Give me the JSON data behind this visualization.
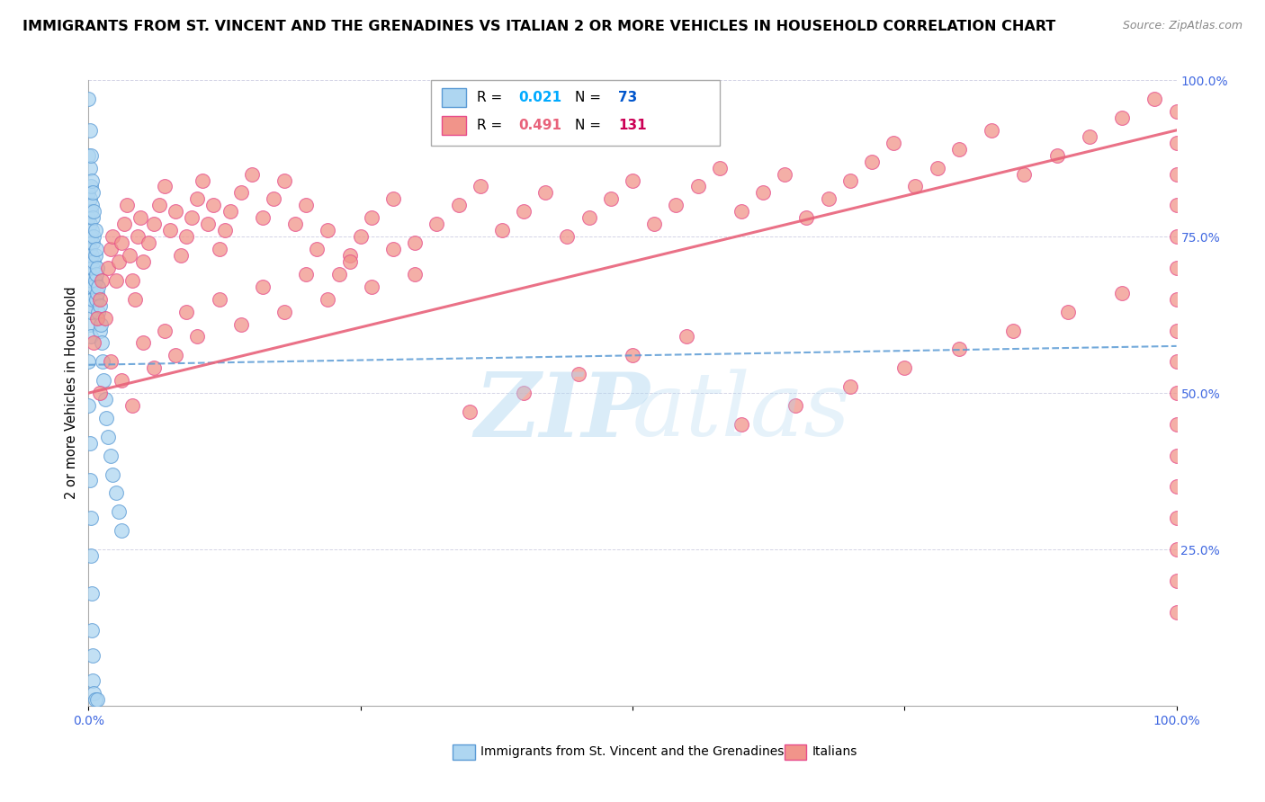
{
  "title": "IMMIGRANTS FROM ST. VINCENT AND THE GRENADINES VS ITALIAN 2 OR MORE VEHICLES IN HOUSEHOLD CORRELATION CHART",
  "source": "Source: ZipAtlas.com",
  "ylabel": "2 or more Vehicles in Household",
  "blue_R": 0.021,
  "blue_N": 73,
  "pink_R": 0.491,
  "pink_N": 131,
  "blue_fill": "#AED6F1",
  "blue_edge": "#5B9BD5",
  "pink_fill": "#F1948A",
  "pink_edge": "#E74C8B",
  "trend_blue_color": "#5B9BD5",
  "trend_pink_color": "#E8627A",
  "blue_x": [
    0.0,
    0.0,
    0.0,
    0.0,
    0.0,
    0.001,
    0.001,
    0.001,
    0.001,
    0.001,
    0.001,
    0.001,
    0.001,
    0.002,
    0.002,
    0.002,
    0.002,
    0.002,
    0.002,
    0.002,
    0.002,
    0.003,
    0.003,
    0.003,
    0.003,
    0.003,
    0.003,
    0.004,
    0.004,
    0.004,
    0.004,
    0.004,
    0.005,
    0.005,
    0.005,
    0.005,
    0.006,
    0.006,
    0.006,
    0.007,
    0.007,
    0.007,
    0.008,
    0.008,
    0.009,
    0.009,
    0.01,
    0.01,
    0.011,
    0.012,
    0.013,
    0.014,
    0.015,
    0.016,
    0.018,
    0.02,
    0.022,
    0.025,
    0.028,
    0.03,
    0.0,
    0.0,
    0.001,
    0.001,
    0.002,
    0.002,
    0.003,
    0.003,
    0.004,
    0.004,
    0.005,
    0.006,
    0.008
  ],
  "blue_y": [
    0.97,
    0.88,
    0.82,
    0.78,
    0.74,
    0.92,
    0.86,
    0.81,
    0.77,
    0.73,
    0.69,
    0.65,
    0.61,
    0.88,
    0.83,
    0.79,
    0.75,
    0.71,
    0.67,
    0.63,
    0.59,
    0.84,
    0.8,
    0.76,
    0.72,
    0.68,
    0.64,
    0.82,
    0.78,
    0.74,
    0.7,
    0.65,
    0.79,
    0.75,
    0.71,
    0.67,
    0.76,
    0.72,
    0.68,
    0.73,
    0.69,
    0.65,
    0.7,
    0.66,
    0.67,
    0.63,
    0.64,
    0.6,
    0.61,
    0.58,
    0.55,
    0.52,
    0.49,
    0.46,
    0.43,
    0.4,
    0.37,
    0.34,
    0.31,
    0.28,
    0.55,
    0.48,
    0.42,
    0.36,
    0.3,
    0.24,
    0.18,
    0.12,
    0.08,
    0.04,
    0.02,
    0.01,
    0.01
  ],
  "pink_x": [
    0.005,
    0.008,
    0.01,
    0.012,
    0.015,
    0.018,
    0.02,
    0.022,
    0.025,
    0.028,
    0.03,
    0.033,
    0.035,
    0.038,
    0.04,
    0.043,
    0.045,
    0.048,
    0.05,
    0.055,
    0.06,
    0.065,
    0.07,
    0.075,
    0.08,
    0.085,
    0.09,
    0.095,
    0.1,
    0.105,
    0.11,
    0.115,
    0.12,
    0.125,
    0.13,
    0.14,
    0.15,
    0.16,
    0.17,
    0.18,
    0.19,
    0.2,
    0.21,
    0.22,
    0.23,
    0.24,
    0.25,
    0.26,
    0.28,
    0.3,
    0.32,
    0.34,
    0.36,
    0.38,
    0.4,
    0.42,
    0.44,
    0.46,
    0.48,
    0.5,
    0.52,
    0.54,
    0.56,
    0.58,
    0.6,
    0.62,
    0.64,
    0.66,
    0.68,
    0.7,
    0.72,
    0.74,
    0.76,
    0.78,
    0.8,
    0.83,
    0.86,
    0.89,
    0.92,
    0.95,
    0.01,
    0.02,
    0.03,
    0.04,
    0.05,
    0.06,
    0.07,
    0.08,
    0.09,
    0.1,
    0.12,
    0.14,
    0.16,
    0.18,
    0.2,
    0.22,
    0.24,
    0.26,
    0.28,
    0.3,
    0.35,
    0.4,
    0.45,
    0.5,
    0.55,
    0.6,
    0.65,
    0.7,
    0.75,
    0.8,
    0.85,
    0.9,
    0.95,
    1.0,
    1.0,
    1.0,
    1.0,
    1.0,
    1.0,
    1.0,
    1.0,
    1.0,
    1.0,
    1.0,
    1.0,
    1.0,
    1.0,
    1.0,
    1.0,
    1.0,
    0.98
  ],
  "pink_y": [
    0.58,
    0.62,
    0.65,
    0.68,
    0.62,
    0.7,
    0.73,
    0.75,
    0.68,
    0.71,
    0.74,
    0.77,
    0.8,
    0.72,
    0.68,
    0.65,
    0.75,
    0.78,
    0.71,
    0.74,
    0.77,
    0.8,
    0.83,
    0.76,
    0.79,
    0.72,
    0.75,
    0.78,
    0.81,
    0.84,
    0.77,
    0.8,
    0.73,
    0.76,
    0.79,
    0.82,
    0.85,
    0.78,
    0.81,
    0.84,
    0.77,
    0.8,
    0.73,
    0.76,
    0.69,
    0.72,
    0.75,
    0.78,
    0.81,
    0.74,
    0.77,
    0.8,
    0.83,
    0.76,
    0.79,
    0.82,
    0.75,
    0.78,
    0.81,
    0.84,
    0.77,
    0.8,
    0.83,
    0.86,
    0.79,
    0.82,
    0.85,
    0.78,
    0.81,
    0.84,
    0.87,
    0.9,
    0.83,
    0.86,
    0.89,
    0.92,
    0.85,
    0.88,
    0.91,
    0.94,
    0.5,
    0.55,
    0.52,
    0.48,
    0.58,
    0.54,
    0.6,
    0.56,
    0.63,
    0.59,
    0.65,
    0.61,
    0.67,
    0.63,
    0.69,
    0.65,
    0.71,
    0.67,
    0.73,
    0.69,
    0.47,
    0.5,
    0.53,
    0.56,
    0.59,
    0.45,
    0.48,
    0.51,
    0.54,
    0.57,
    0.6,
    0.63,
    0.66,
    0.95,
    0.9,
    0.85,
    0.8,
    0.75,
    0.7,
    0.65,
    0.6,
    0.55,
    0.5,
    0.45,
    0.4,
    0.35,
    0.3,
    0.25,
    0.2,
    0.15,
    0.97
  ]
}
